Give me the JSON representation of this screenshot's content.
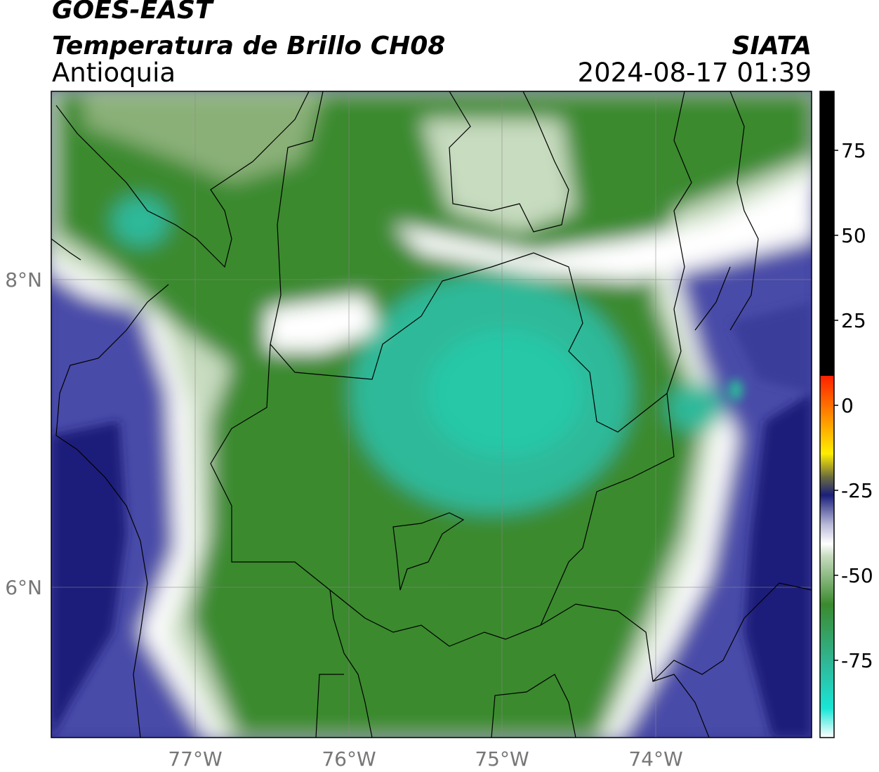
{
  "header": {
    "satellite": "GOES-EAST",
    "product": "Temperatura de Brillo CH08",
    "region": "Antioquia",
    "agency": "SIATA",
    "datetime": "2024-08-17 01:39"
  },
  "map": {
    "lon_labels": [
      "77°W",
      "76°W",
      "75°W",
      "74°W"
    ],
    "lat_labels": [
      "8°N",
      "6°N"
    ]
  },
  "colorbar": {
    "tick_labels": [
      "75",
      "50",
      "25",
      "0",
      "-25",
      "-50",
      "-75"
    ],
    "colors": {
      "cyan": "#19e6d6",
      "teal": "#2fb99a",
      "green": "#3b8a2e",
      "pale_green": "#c8dcc0",
      "white": "#ffffff",
      "lavender": "#b8b8d8",
      "blue": "#3a3c9a",
      "navy": "#1a1f7a",
      "black": "#000000",
      "red": "#ff2000",
      "orange": "#ff9000",
      "yellow": "#ffee00"
    }
  }
}
